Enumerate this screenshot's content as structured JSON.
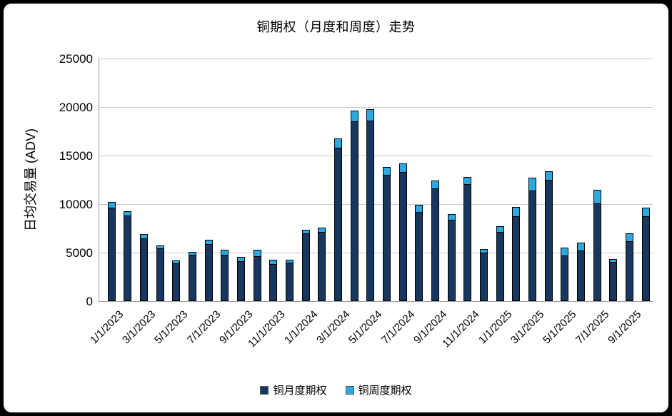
{
  "chart_data": {
    "type": "bar",
    "stacked": true,
    "title": "铜期权（月度和周度）走势",
    "ylabel": "日均交易量 (ADV)",
    "xlabel": "",
    "ylim": [
      0,
      25000
    ],
    "yticks": [
      0,
      5000,
      10000,
      15000,
      20000,
      25000
    ],
    "grid": "horizontal",
    "legend_position": "bottom",
    "categories": [
      "1/1/2023",
      "2/1/2023",
      "3/1/2023",
      "4/1/2023",
      "5/1/2023",
      "6/1/2023",
      "7/1/2023",
      "8/1/2023",
      "9/1/2023",
      "10/1/2023",
      "11/1/2023",
      "12/1/2023",
      "1/1/2024",
      "2/1/2024",
      "3/1/2024",
      "4/1/2024",
      "5/1/2024",
      "6/1/2024",
      "7/1/2024",
      "8/1/2024",
      "9/1/2024",
      "10/1/2024",
      "11/1/2024",
      "12/1/2024",
      "1/1/2025",
      "2/1/2025",
      "3/1/2025",
      "4/1/2025",
      "5/1/2025",
      "6/1/2025",
      "7/1/2025",
      "8/1/2025",
      "9/1/2025",
      "10/1/2025"
    ],
    "xtick_labels_shown": [
      "1/1/2023",
      "3/1/2023",
      "5/1/2023",
      "7/1/2023",
      "9/1/2023",
      "11/1/2023",
      "1/1/2024",
      "3/1/2024",
      "5/1/2024",
      "7/1/2024",
      "9/1/2024",
      "11/1/2024",
      "1/1/2025",
      "3/1/2025",
      "5/1/2025",
      "7/1/2025",
      "9/1/2025"
    ],
    "series": [
      {
        "name": "铜月度期权",
        "color": "#17375E",
        "values": [
          9650,
          8800,
          6500,
          5450,
          3900,
          4750,
          5850,
          4800,
          4150,
          4600,
          3850,
          4000,
          6950,
          7150,
          15800,
          18500,
          18600,
          13000,
          13300,
          9200,
          11600,
          8350,
          12050,
          5000,
          7100,
          8750,
          11400,
          12500,
          4700,
          5200,
          10100,
          4050,
          6200,
          8750
        ]
      },
      {
        "name": "铜周度期权",
        "color": "#2BA9E0",
        "values": [
          550,
          500,
          400,
          300,
          300,
          350,
          450,
          500,
          400,
          700,
          400,
          300,
          400,
          450,
          1000,
          1100,
          1200,
          800,
          900,
          700,
          800,
          650,
          750,
          350,
          600,
          950,
          1300,
          900,
          800,
          800,
          1400,
          300,
          750,
          900
        ]
      }
    ]
  }
}
